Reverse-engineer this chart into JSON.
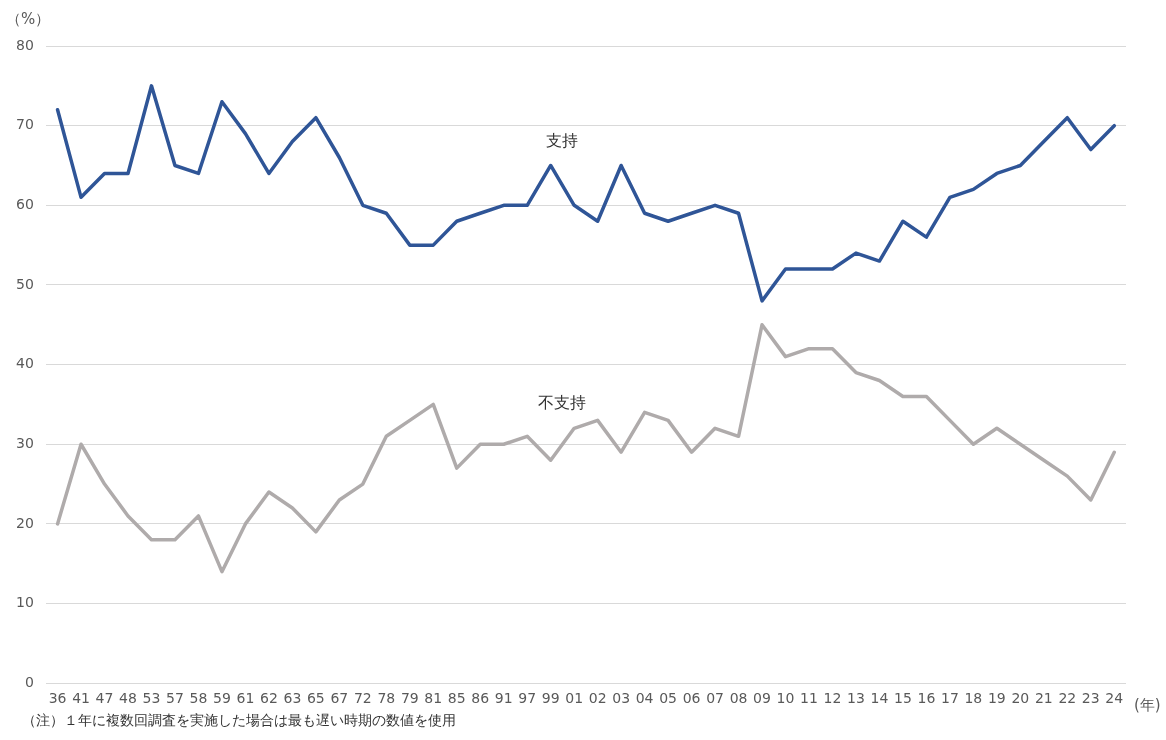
{
  "chart_data": {
    "type": "line",
    "ylabel": "（%）",
    "xlabel": "(年)",
    "categories": [
      "36",
      "41",
      "47",
      "48",
      "53",
      "57",
      "58",
      "59",
      "61",
      "62",
      "63",
      "65",
      "67",
      "72",
      "78",
      "79",
      "81",
      "85",
      "86",
      "91",
      "97",
      "99",
      "01",
      "02",
      "03",
      "04",
      "05",
      "06",
      "07",
      "08",
      "09",
      "10",
      "11",
      "12",
      "13",
      "14",
      "15",
      "16",
      "17",
      "18",
      "19",
      "20",
      "21",
      "22",
      "23",
      "24"
    ],
    "series": [
      {
        "name": "支持",
        "color": "#2f5597",
        "values": [
          72,
          61,
          64,
          64,
          75,
          65,
          64,
          73,
          69,
          64,
          68,
          71,
          66,
          60,
          59,
          55,
          55,
          58,
          59,
          60,
          60,
          65,
          60,
          58,
          65,
          59,
          58,
          59,
          60,
          59,
          48,
          52,
          52,
          52,
          54,
          53,
          58,
          56,
          61,
          62,
          64,
          65,
          68,
          71,
          67,
          70
        ]
      },
      {
        "name": "不支持",
        "color": "#afabab",
        "values": [
          20,
          30,
          25,
          21,
          18,
          18,
          21,
          14,
          20,
          24,
          22,
          19,
          23,
          25,
          31,
          33,
          35,
          27,
          30,
          30,
          31,
          28,
          32,
          33,
          29,
          34,
          33,
          29,
          32,
          31,
          45,
          41,
          42,
          42,
          39,
          38,
          36,
          36,
          33,
          30,
          32,
          30,
          28,
          26,
          23,
          29
        ]
      }
    ],
    "ylim": [
      0,
      80
    ],
    "yticks": [
      0,
      10,
      20,
      30,
      40,
      50,
      60,
      70,
      80
    ],
    "grid": "y",
    "legend": false,
    "marker": "none",
    "line_style": "solid",
    "annotations": [
      "（注）１年に複数回調査を実施した場合は最も遅い時期の数値を使用"
    ]
  }
}
